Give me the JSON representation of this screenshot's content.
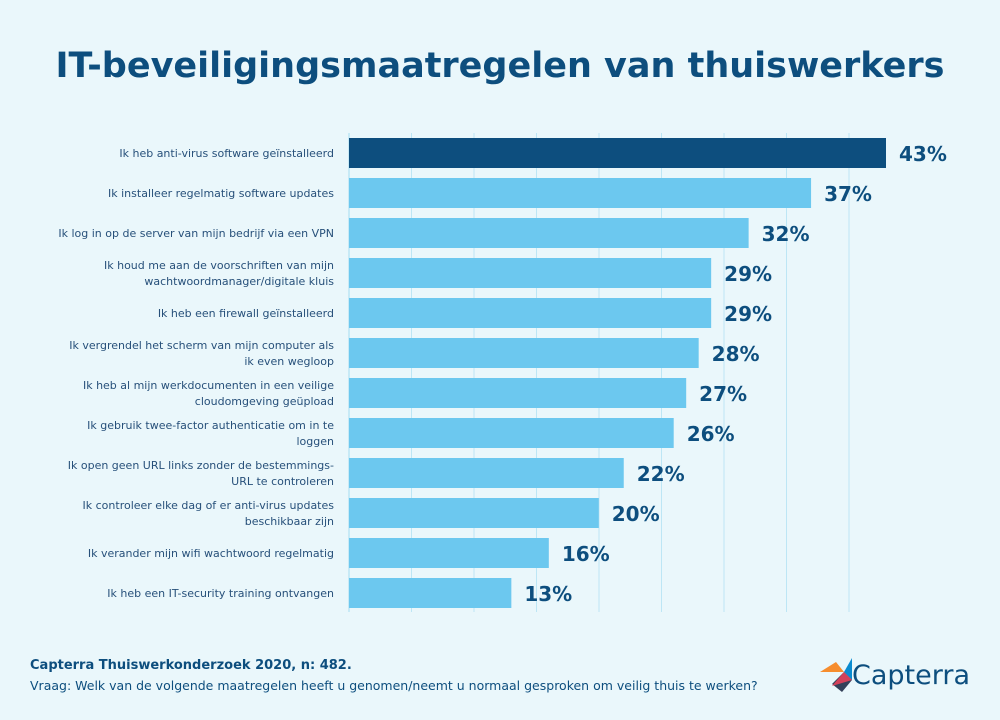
{
  "chart_data": {
    "type": "bar",
    "orientation": "horizontal",
    "title": "IT-beveiligingsmaatregelen van thuiswerkers",
    "categories": [
      [
        "Ik heb anti-virus software geïnstalleerd"
      ],
      [
        "Ik installeer regelmatig software updates"
      ],
      [
        "Ik log in op de server van mijn bedrijf via een VPN"
      ],
      [
        "Ik houd me aan de voorschriften van mijn",
        "wachtwoordmanager/digitale kluis"
      ],
      [
        "Ik heb een firewall geïnstalleerd"
      ],
      [
        "Ik vergrendel het scherm van mijn computer als",
        "ik even wegloop"
      ],
      [
        "Ik heb al mijn werkdocumenten in een veilige",
        "cloudomgeving geüpload"
      ],
      [
        "Ik gebruik twee-factor authenticatie om in te",
        "loggen"
      ],
      [
        "Ik open geen URL links zonder de bestemmings-",
        "URL te controleren"
      ],
      [
        "Ik controleer elke dag of er anti-virus updates",
        "beschikbaar zijn"
      ],
      [
        "Ik verander mijn wifi wachtwoord regelmatig"
      ],
      [
        "Ik heb een IT-security training ontvangen"
      ]
    ],
    "values": [
      43,
      37,
      32,
      29,
      29,
      28,
      27,
      26,
      22,
      20,
      16,
      13
    ],
    "value_labels": [
      "43%",
      "37%",
      "32%",
      "29%",
      "29%",
      "28%",
      "27%",
      "26%",
      "22%",
      "20%",
      "16%",
      "13%"
    ],
    "highlight_index": 0,
    "xlim": [
      0,
      43
    ],
    "grid": true,
    "colors": {
      "highlight": "#0d4e7e",
      "bar": "#6cc8ef",
      "label": "#0d4e7e",
      "category_text": "#27507a",
      "grid": "#bde6f5"
    }
  },
  "footer": {
    "source": "Capterra Thuiswerkonderzoek 2020, n: 482.",
    "question": "Vraag: Welk van de volgende maatregelen heeft u genomen/neemt u normaal gesproken om veilig thuis te werken?"
  },
  "logo": {
    "text": "Capterra",
    "icon": "capterra-arrow-icon"
  }
}
